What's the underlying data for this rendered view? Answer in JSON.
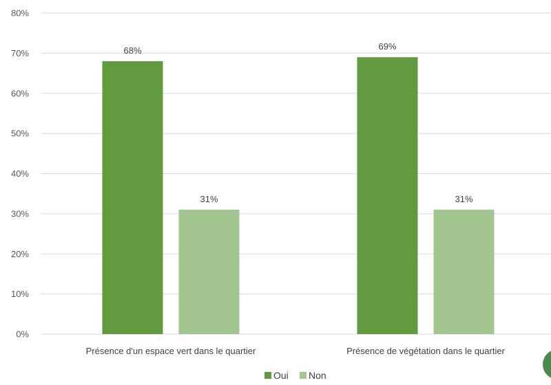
{
  "chart_data": {
    "type": "bar",
    "title": "",
    "xlabel": "",
    "ylabel": "",
    "ylim": [
      0,
      0.8
    ],
    "yticks": [
      0,
      0.1,
      0.2,
      0.3,
      0.4,
      0.5,
      0.6,
      0.7,
      0.8
    ],
    "ytick_labels": [
      "0%",
      "10%",
      "20%",
      "30%",
      "40%",
      "50%",
      "60%",
      "70%",
      "80%"
    ],
    "grid": true,
    "legend_position": "bottom",
    "categories": [
      "Présence d'un espace vert dans le quartier",
      "Présence de végétation dans le quartier"
    ],
    "series": [
      {
        "name": "Oui",
        "color": "#619a3f",
        "values": [
          0.68,
          0.69
        ],
        "data_labels": [
          "68%",
          "69%"
        ]
      },
      {
        "name": "Non",
        "color": "#a3c58f",
        "values": [
          0.31,
          0.31
        ],
        "data_labels": [
          "31%",
          "31%"
        ]
      }
    ]
  }
}
